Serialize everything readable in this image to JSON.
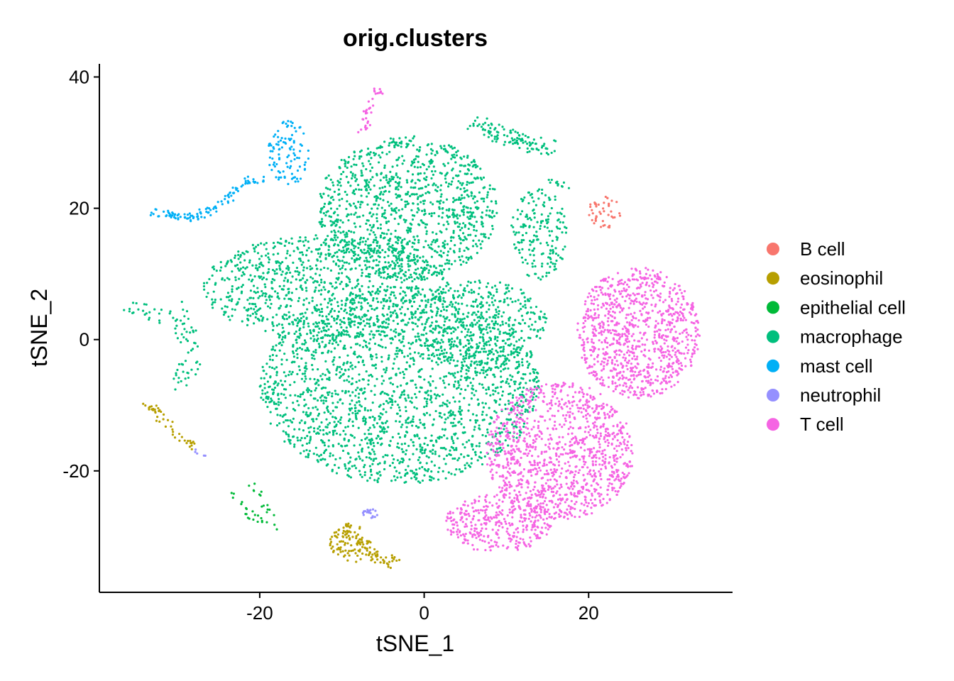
{
  "chart_data": {
    "type": "scatter",
    "title": "orig.clusters",
    "xlabel": "tSNE_1",
    "ylabel": "tSNE_2",
    "xlim": [
      -39.5,
      37.5
    ],
    "ylim": [
      -38.5,
      42
    ],
    "xticks": [
      -20,
      0,
      20
    ],
    "xtick_labels": [
      "-20",
      "0",
      "20"
    ],
    "yticks": [
      -20,
      0,
      20,
      40
    ],
    "ytick_labels": [
      "-20",
      "0",
      "20",
      "40"
    ],
    "grid": false,
    "legend_position": "right",
    "series": [
      {
        "name": "B cell",
        "color": "#F8766D",
        "regions": [
          {
            "cx": 22,
            "cy": 19.5,
            "rx": 2,
            "ry": 2.5,
            "n": 45
          }
        ],
        "strokes": []
      },
      {
        "name": "eosinophil",
        "color": "#B79F00",
        "regions": [
          {
            "cx": -9,
            "cy": -31,
            "rx": 2.5,
            "ry": 3,
            "n": 110
          }
        ],
        "strokes": [
          {
            "path": [
              [
                -34,
                -9.5
              ],
              [
                -31,
                -13
              ],
              [
                -28,
                -16.5
              ]
            ],
            "n": 45,
            "spread": 0.6
          },
          {
            "path": [
              [
                -7,
                -32
              ],
              [
                -5,
                -33.5
              ],
              [
                -3.5,
                -34
              ]
            ],
            "n": 40,
            "spread": 0.9
          }
        ]
      },
      {
        "name": "epithelial cell",
        "color": "#00BA38",
        "regions": [],
        "strokes": [
          {
            "path": [
              [
                -23.5,
                -23
              ],
              [
                -21,
                -27
              ],
              [
                -17.5,
                -29
              ]
            ],
            "n": 22,
            "spread": 0.5
          },
          {
            "path": [
              [
                -21,
                -22
              ],
              [
                -18.5,
                -27
              ]
            ],
            "n": 14,
            "spread": 0.5
          }
        ]
      },
      {
        "name": "macrophage",
        "color": "#00BF7D",
        "regions": [
          {
            "cx": -3,
            "cy": -7,
            "rx": 17,
            "ry": 15,
            "n": 2000
          },
          {
            "cx": 7,
            "cy": 2,
            "rx": 8,
            "ry": 7,
            "n": 400
          },
          {
            "cx": -12,
            "cy": 8,
            "rx": 15,
            "ry": 8,
            "n": 900
          },
          {
            "cx": -2,
            "cy": 20,
            "rx": 11,
            "ry": 11,
            "n": 1100
          },
          {
            "cx": 14,
            "cy": 16,
            "rx": 3.5,
            "ry": 7,
            "n": 180
          }
        ],
        "strokes": [
          {
            "path": [
              [
                6,
                33
              ],
              [
                10,
                31
              ],
              [
                15,
                29
              ]
            ],
            "n": 110,
            "spread": 1.2
          },
          {
            "path": [
              [
                -30,
                5
              ],
              [
                -28,
                -2
              ],
              [
                -30,
                -8
              ]
            ],
            "n": 50,
            "spread": 1.2
          },
          {
            "path": [
              [
                -36,
                5.5
              ],
              [
                -31,
                3
              ],
              [
                -29,
                1
              ]
            ],
            "n": 30,
            "spread": 1
          },
          {
            "path": [
              [
                15,
                24
              ],
              [
                17.5,
                23.5
              ]
            ],
            "n": 12,
            "spread": 0.6
          }
        ]
      },
      {
        "name": "mast cell",
        "color": "#00B0F6",
        "regions": [
          {
            "cx": -16.5,
            "cy": 28.5,
            "rx": 2.5,
            "ry": 5,
            "n": 100
          }
        ],
        "strokes": [
          {
            "path": [
              [
                -33,
                19.5
              ],
              [
                -29,
                18.5
              ],
              [
                -25,
                20
              ],
              [
                -22,
                24
              ],
              [
                -19.5,
                24.5
              ]
            ],
            "n": 110,
            "spread": 0.6
          }
        ]
      },
      {
        "name": "neutrophil",
        "color": "#9590FF",
        "regions": [
          {
            "cx": -6.5,
            "cy": -26.5,
            "rx": 1,
            "ry": 0.7,
            "n": 20
          }
        ],
        "strokes": [
          {
            "path": [
              [
                -28,
                -17
              ],
              [
                -26.5,
                -18
              ]
            ],
            "n": 5,
            "spread": 0.3
          }
        ]
      },
      {
        "name": "T cell",
        "color": "#F564E3",
        "regions": [
          {
            "cx": 26,
            "cy": 1,
            "rx": 7.5,
            "ry": 10,
            "n": 950
          },
          {
            "cx": 16.5,
            "cy": -17,
            "rx": 9,
            "ry": 10.5,
            "n": 1100
          },
          {
            "cx": 9,
            "cy": -28,
            "rx": 6.5,
            "ry": 4.5,
            "n": 350
          }
        ],
        "strokes": [
          {
            "path": [
              [
                -5.5,
                38
              ],
              [
                -6.5,
                35
              ],
              [
                -7.5,
                32
              ]
            ],
            "n": 35,
            "spread": 0.6
          }
        ]
      }
    ]
  }
}
